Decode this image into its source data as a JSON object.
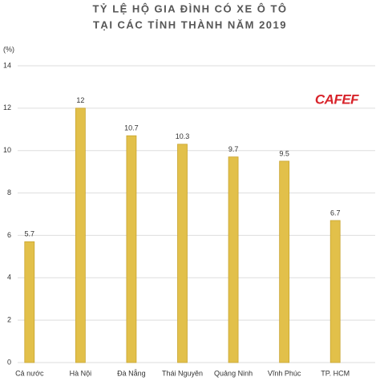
{
  "chart_data": {
    "type": "bar",
    "title": "TỶ LỆ HỘ GIA ĐÌNH CÓ XE Ô TÔ",
    "subtitle": "TẠI CÁC TỈNH THÀNH NĂM 2019",
    "y_label": "(%)",
    "logo": "CAFEF",
    "categories": [
      "Cả nước",
      "Hà Nội",
      "Đà Nẵng",
      "Thái Nguyên",
      "Quảng Ninh",
      "Vĩnh Phúc",
      "TP. HCM"
    ],
    "values": [
      5.7,
      12,
      10.7,
      10.3,
      9.7,
      9.5,
      6.7
    ],
    "color": "#e2c04a",
    "ylim": [
      0,
      14
    ],
    "yticks": [
      0,
      2,
      4,
      6,
      8,
      10,
      12,
      14
    ],
    "grid": true
  }
}
